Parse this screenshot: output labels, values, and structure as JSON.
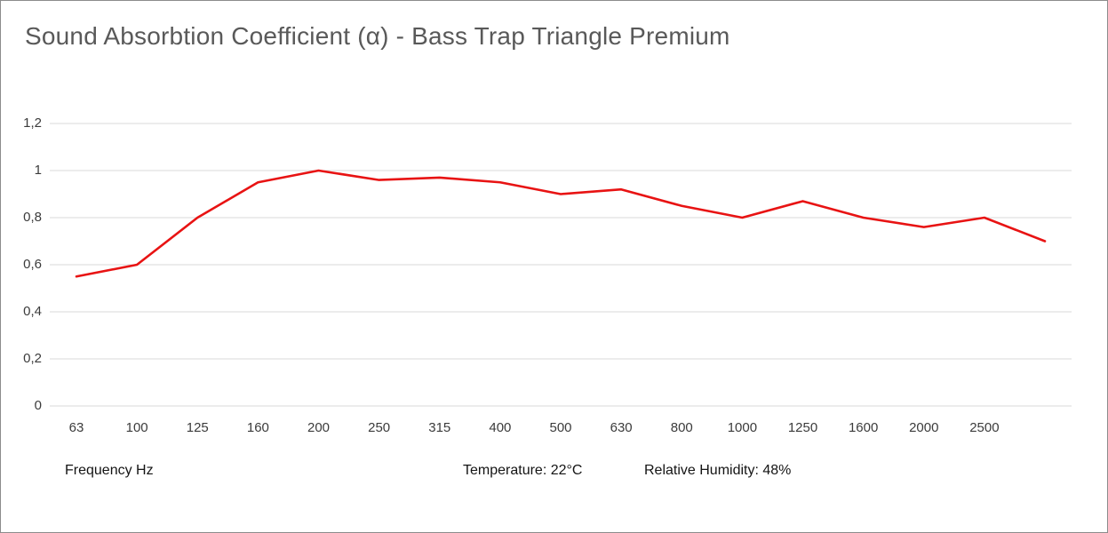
{
  "title": "Sound Absorbtion Coefficient (α) - Bass Trap Triangle Premium",
  "footer": {
    "x_axis_title": "Frequency Hz",
    "temperature": "Temperature: 22°C",
    "humidity": "Relative Humidity: 48%"
  },
  "chart_data": {
    "type": "line",
    "title": "Sound Absorbtion Coefficient (α) - Bass Trap Triangle Premium",
    "xlabel": "Frequency Hz",
    "ylabel": "",
    "categories": [
      "63",
      "100",
      "125",
      "160",
      "200",
      "250",
      "315",
      "400",
      "500",
      "630",
      "800",
      "1000",
      "1250",
      "1600",
      "2000",
      "2500",
      ""
    ],
    "values": [
      0.55,
      0.6,
      0.8,
      0.95,
      1.0,
      0.96,
      0.97,
      0.95,
      0.9,
      0.92,
      0.85,
      0.8,
      0.87,
      0.8,
      0.76,
      0.8,
      0.7
    ],
    "y_ticks": [
      "0",
      "0,2",
      "0,4",
      "0,6",
      "0,8",
      "1",
      "1,2"
    ],
    "ylim": [
      0,
      1.2
    ],
    "grid": true,
    "legend": "none",
    "line_color": "#e81313",
    "grid_color": "#d9d9d9",
    "annotations": [
      "Temperature: 22°C",
      "Relative Humidity: 48%"
    ]
  }
}
